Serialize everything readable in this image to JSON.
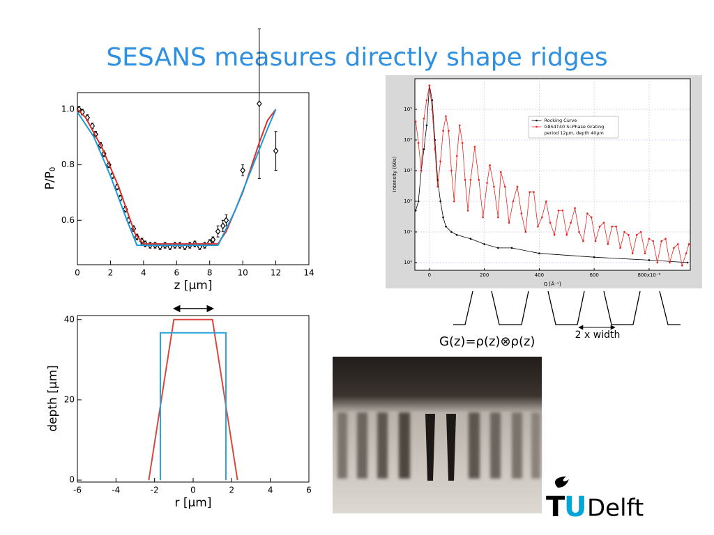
{
  "slide": {
    "title": "SESANS measures directly shape ridges",
    "formula": "G(z)=ρ(z)⊗ρ(z)",
    "annotation": "2 x width",
    "logo": {
      "t": "T",
      "u": "U",
      "rest": "Delft"
    }
  },
  "chart_data": [
    {
      "type": "scatter",
      "xlabel": "z [μm]",
      "ylabel": "P/P",
      "ylabel_sub": "0",
      "xlim": [
        0,
        14
      ],
      "ylim": [
        0.44,
        1.06
      ],
      "xticks": [
        0,
        2,
        4,
        6,
        8,
        10,
        12,
        14
      ],
      "yticks": [
        0.6,
        0.8,
        {
          "value": 1,
          "label": "1.0"
        }
      ],
      "grid": false,
      "series": [
        {
          "color": "#000000",
          "x": [
            0.1,
            0.3,
            0.6,
            0.9,
            1.1,
            1.4,
            1.6,
            1.9,
            2.1,
            2.4,
            2.6,
            2.9,
            3.1,
            3.4,
            3.6,
            3.9,
            4.1,
            4.4,
            4.7,
            5.0,
            5.3,
            5.6,
            5.9,
            6.2,
            6.5,
            6.8,
            7.1,
            7.4,
            7.7,
            8.0,
            8.2,
            8.5,
            8.8,
            9.0,
            10.0,
            11.0,
            12.0
          ],
          "values": [
            1.0,
            0.99,
            0.97,
            0.94,
            0.91,
            0.87,
            0.84,
            0.8,
            0.76,
            0.72,
            0.68,
            0.64,
            0.6,
            0.57,
            0.54,
            0.525,
            0.515,
            0.51,
            0.51,
            0.505,
            0.51,
            0.505,
            0.51,
            0.51,
            0.505,
            0.51,
            0.515,
            0.505,
            0.51,
            0.52,
            0.53,
            0.56,
            0.58,
            0.6,
            0.78,
            1.02,
            0.85
          ],
          "errors": [
            0.01,
            0.01,
            0.01,
            0.01,
            0.01,
            0.01,
            0.01,
            0.01,
            0.01,
            0.01,
            0.01,
            0.01,
            0.01,
            0.01,
            0.01,
            0.01,
            0.01,
            0.01,
            0.01,
            0.01,
            0.01,
            0.01,
            0.01,
            0.01,
            0.01,
            0.01,
            0.01,
            0.01,
            0.01,
            0.01,
            0.01,
            0.02,
            0.02,
            0.02,
            0.02,
            0.27,
            0.07
          ]
        },
        {
          "type": "line",
          "color": "#d8312b",
          "x": [
            0,
            0.5,
            1.5,
            2.5,
            3.5,
            4,
            8.5,
            9,
            10,
            11,
            11.5,
            12
          ],
          "values": [
            1.0,
            0.97,
            0.86,
            0.72,
            0.55,
            0.515,
            0.515,
            0.56,
            0.7,
            0.88,
            0.96,
            1.0
          ]
        },
        {
          "type": "line",
          "color": "#1a9bd7",
          "x": [
            0,
            1,
            2,
            3,
            3.6,
            8.5,
            9.5,
            10.5,
            11.5,
            12
          ],
          "values": [
            0.99,
            0.9,
            0.76,
            0.6,
            0.51,
            0.51,
            0.63,
            0.78,
            0.93,
            1.0
          ]
        }
      ]
    },
    {
      "type": "line",
      "xlabel": "Q [Å⁻¹]",
      "ylabel": "Intensity (60s)",
      "log_y": true,
      "grid": true,
      "legend": "upper center",
      "xlim": [
        -53,
        950
      ],
      "ylim": [
        0.56,
        1000000
      ],
      "xticks": [
        0,
        200,
        400,
        600,
        {
          "value": 800,
          "label": "800x10⁻⁶"
        }
      ],
      "yticks": [
        {
          "value": 1,
          "label": "10⁰"
        },
        {
          "value": 10,
          "label": "10¹"
        },
        {
          "value": 100,
          "label": "10²"
        },
        {
          "value": 1000,
          "label": "10³"
        },
        {
          "value": 10000,
          "label": "10⁴"
        },
        {
          "value": 100000,
          "label": "10⁵"
        }
      ],
      "legend_note": "period 12μm, depth 40μm",
      "series": [
        {
          "name": "Rocking Curve",
          "color": "#000000",
          "x": [
            -50,
            -40,
            -30,
            -20,
            -10,
            0,
            10,
            20,
            30,
            40,
            50,
            60,
            80,
            100,
            150,
            200,
            250,
            300,
            400,
            600,
            800,
            940
          ],
          "values": [
            50,
            100,
            1000,
            5000,
            30000,
            600000,
            200000,
            10000,
            500,
            100,
            30,
            15,
            10,
            8,
            6,
            4,
            3,
            3,
            2,
            1.5,
            1.2,
            1
          ]
        },
        {
          "name": "G8S4T40 Si-Phase Grating",
          "color": "#e8231f",
          "x": [
            -50,
            -40,
            -30,
            -20,
            -10,
            0,
            10,
            20,
            30,
            40,
            50,
            60,
            70,
            80,
            90,
            100,
            110,
            120,
            130,
            140,
            150,
            165,
            180,
            195,
            210,
            220,
            235,
            250,
            260,
            275,
            290,
            305,
            320,
            335,
            350,
            365,
            380,
            395,
            410,
            425,
            440,
            455,
            470,
            485,
            500,
            515,
            530,
            545,
            560,
            575,
            590,
            605,
            620,
            635,
            650,
            665,
            680,
            695,
            710,
            725,
            740,
            755,
            770,
            785,
            800,
            815,
            830,
            845,
            860,
            875,
            890,
            905,
            920,
            935,
            945
          ],
          "values": [
            40000,
            8000,
            1000,
            50000,
            200000,
            600000,
            100000,
            5000,
            300,
            2000,
            20000,
            60000,
            20000,
            1000,
            100,
            3000,
            30000,
            8000,
            500,
            50,
            500,
            6000,
            500,
            30,
            400,
            1500,
            300,
            30,
            900,
            300,
            20,
            100,
            300,
            40,
            10,
            200,
            200,
            15,
            30,
            100,
            20,
            8,
            50,
            50,
            8,
            20,
            60,
            10,
            5,
            40,
            30,
            5,
            15,
            20,
            4,
            15,
            15,
            3,
            10,
            8,
            2,
            8,
            10,
            2,
            6,
            5,
            1,
            5,
            6,
            1,
            3,
            4,
            0.8,
            2,
            4
          ]
        }
      ]
    },
    {
      "type": "line",
      "xlabel": "r [μm]",
      "ylabel": "depth [μm]",
      "xlim": [
        -6,
        6
      ],
      "ylim": [
        -0.5,
        41
      ],
      "xticks": [
        -6,
        -4,
        -2,
        0,
        2,
        4,
        6
      ],
      "yticks": [
        0,
        20,
        40
      ],
      "grid": false,
      "series": [
        {
          "color": "#d9473f",
          "x": [
            -2.3,
            -1,
            1,
            2.3
          ],
          "values": [
            0,
            40,
            40,
            0
          ]
        },
        {
          "color": "#2aa4dc",
          "x": [
            -1.7,
            -1.7,
            1.7,
            1.7
          ],
          "values": [
            0,
            36.7,
            36.7,
            0
          ]
        }
      ]
    }
  ]
}
